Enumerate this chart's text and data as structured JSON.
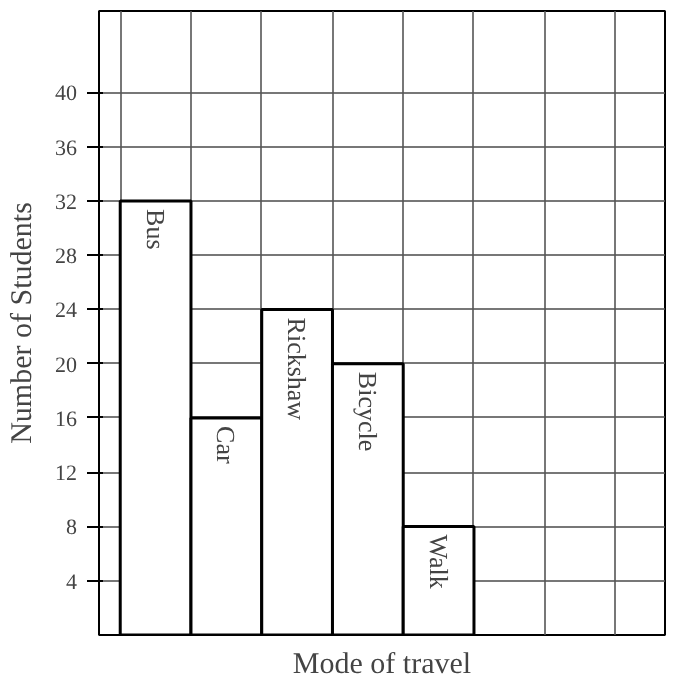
{
  "chart_data": {
    "type": "bar",
    "xlabel": "Mode of travel",
    "ylabel": "Number of Students",
    "categories": [
      "Bus",
      "Car",
      "Rickshaw",
      "Bicycle",
      "Walk"
    ],
    "values": [
      32,
      16,
      24,
      20,
      8
    ],
    "color": "#ffffff",
    "ylim": [
      0,
      46
    ],
    "yticks": [
      4,
      8,
      12,
      16,
      20,
      24,
      28,
      32,
      36,
      40
    ],
    "grid": true
  }
}
